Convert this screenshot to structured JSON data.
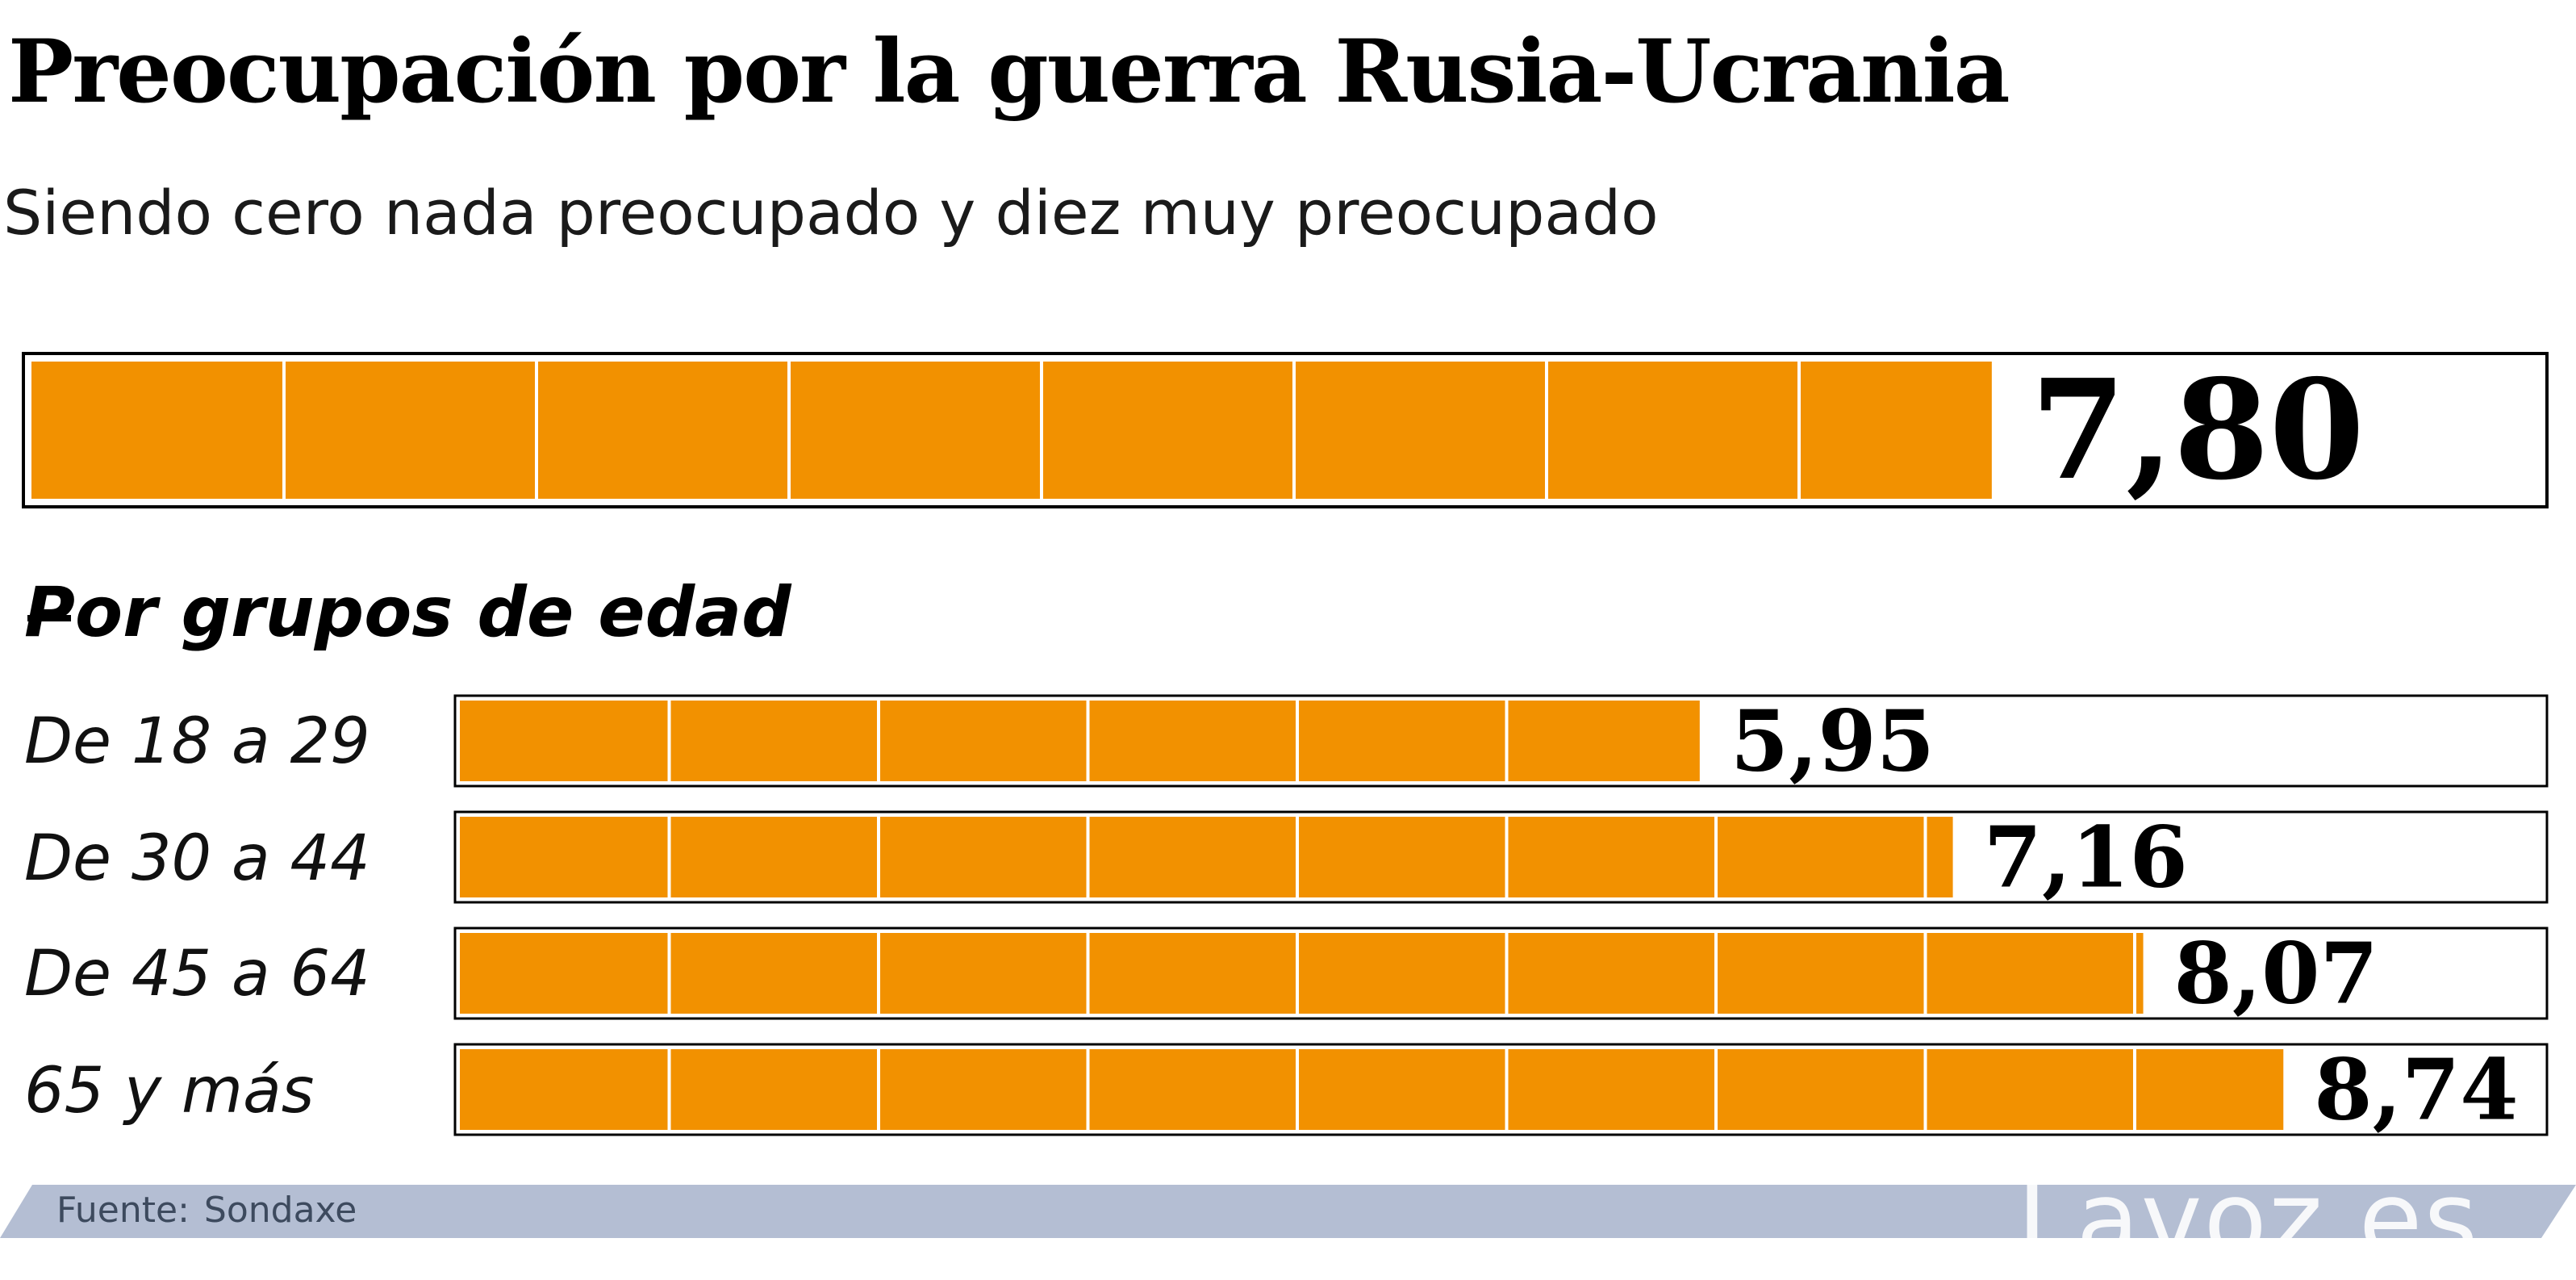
{
  "header": {
    "title": "Preocupación por la guerra Rusia-Ucrania",
    "subtitle": "Siendo cero nada preocupado y diez muy preocupado"
  },
  "section_title": "Por grupos de edad",
  "footer": {
    "source_label": "Fuente:",
    "source_value": "Sondaxe",
    "brand": "Lavoz.es"
  },
  "colors": {
    "bar": "#F29100",
    "footer_band": "#B4BED3",
    "border": "#000000"
  },
  "chart_data": [
    {
      "type": "bar",
      "orientation": "horizontal",
      "scale_max": 10,
      "categories": [
        ""
      ],
      "values": [
        7.8
      ],
      "labels": [
        "7,80"
      ],
      "title": "Preocupación por la guerra Rusia-Ucrania",
      "subtitle": "Siendo cero nada preocupado y diez muy preocupado"
    },
    {
      "type": "bar",
      "orientation": "horizontal",
      "scale_max": 10,
      "title": "Por grupos de edad",
      "categories": [
        "De 18 a 29",
        "De 30 a 44",
        "De 45 a 64",
        "65 y más"
      ],
      "values": [
        5.95,
        7.16,
        8.07,
        8.74
      ],
      "labels": [
        "5,95",
        "7,16",
        "8,07",
        "8,74"
      ]
    }
  ]
}
